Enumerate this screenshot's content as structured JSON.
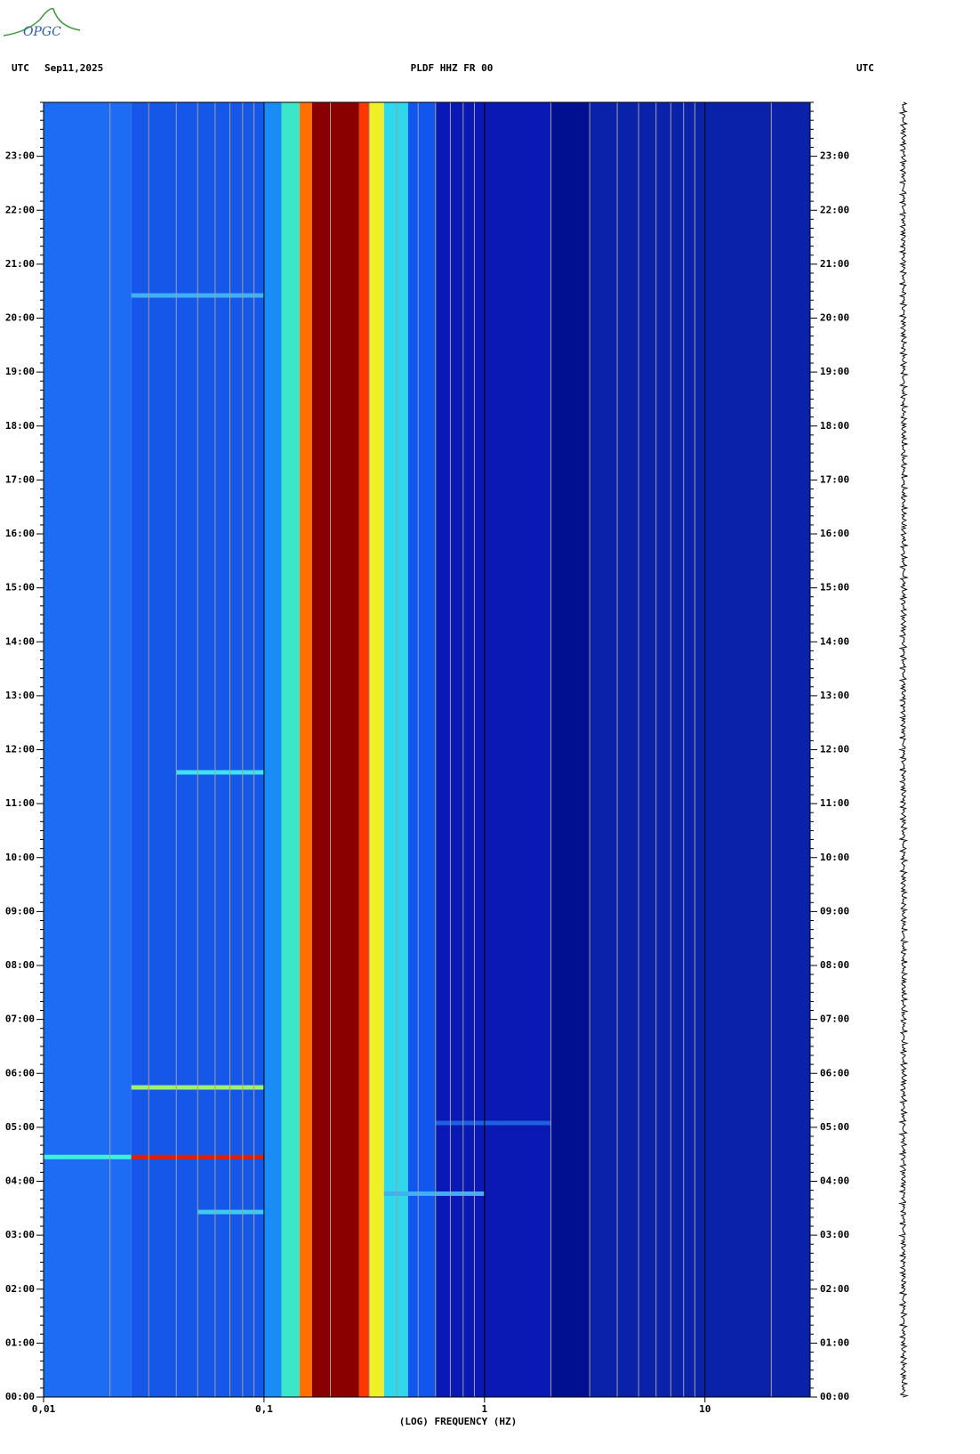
{
  "logo": "OPGC",
  "chart_data": {
    "type": "spectrogram",
    "title": "PLDF HHZ FR 00",
    "timezone_left": "UTC",
    "date": "Sep11,2025",
    "timezone_right": "UTC",
    "x_label": "(LOG) FREQUENCY (HZ)",
    "log_x": true,
    "xlim": [
      0.01,
      30
    ],
    "xticks": [
      {
        "value": 0.01,
        "label": "0,01"
      },
      {
        "value": 0.1,
        "label": "0,1"
      },
      1,
      10
    ],
    "xgrid": [
      0.02,
      0.03,
      0.04,
      0.05,
      0.06,
      0.07,
      0.08,
      0.09,
      0.2,
      0.3,
      0.4,
      0.5,
      0.6,
      0.7,
      0.8,
      0.9,
      2,
      3,
      4,
      5,
      6,
      7,
      8,
      9,
      20
    ],
    "ylim": [
      0,
      24
    ],
    "yticks": [
      {
        "value": 0,
        "label": "00:00"
      },
      {
        "value": 1,
        "label": "01:00"
      },
      {
        "value": 2,
        "label": "02:00"
      },
      {
        "value": 3,
        "label": "03:00"
      },
      {
        "value": 4,
        "label": "04:00"
      },
      {
        "value": 5,
        "label": "05:00"
      },
      {
        "value": 6,
        "label": "06:00"
      },
      {
        "value": 7,
        "label": "07:00"
      },
      {
        "value": 8,
        "label": "08:00"
      },
      {
        "value": 9,
        "label": "09:00"
      },
      {
        "value": 10,
        "label": "10:00"
      },
      {
        "value": 11,
        "label": "11:00"
      },
      {
        "value": 12,
        "label": "12:00"
      },
      {
        "value": 13,
        "label": "13:00"
      },
      {
        "value": 14,
        "label": "14:00"
      },
      {
        "value": 15,
        "label": "15:00"
      },
      {
        "value": 16,
        "label": "16:00"
      },
      {
        "value": 17,
        "label": "17:00"
      },
      {
        "value": 18,
        "label": "18:00"
      },
      {
        "value": 19,
        "label": "19:00"
      },
      {
        "value": 20,
        "label": "20:00"
      },
      {
        "value": 21,
        "label": "21:00"
      },
      {
        "value": 22,
        "label": "22:00"
      },
      {
        "value": 23,
        "label": "23:00"
      }
    ],
    "yminor_per_tick": 6,
    "bins": [
      0.01,
      0.025,
      0.1,
      0.12,
      0.145,
      0.165,
      0.27,
      0.3,
      0.35,
      0.45,
      0.6,
      2,
      3,
      30
    ],
    "bin_colors": [
      "#1f6cf4",
      "#1557e8",
      "#1a8cf5",
      "#3ce6c8",
      "#ff7000",
      "#8a0000",
      "#ff3800",
      "#f0f028",
      "#30d8ec",
      "#1256f0",
      "#0a18b4",
      "#001090",
      "#0a22aa"
    ],
    "events": [
      {
        "time": 4.45,
        "freq": [
          0.01,
          0.025
        ],
        "color": "#40f0e0"
      },
      {
        "time": 4.45,
        "freq": [
          0.025,
          0.1
        ],
        "color": "#e02000"
      },
      {
        "time": 5.74,
        "freq": [
          0.025,
          0.1
        ],
        "color": "#a0f070"
      },
      {
        "time": 11.58,
        "freq": [
          0.04,
          0.1
        ],
        "color": "#40e0f0"
      },
      {
        "time": 3.43,
        "freq": [
          0.05,
          0.1
        ],
        "color": "#40c8f0"
      },
      {
        "time": 20.42,
        "freq": [
          0.025,
          0.1
        ],
        "color": "#40b0f0"
      },
      {
        "time": 3.77,
        "freq": [
          0.35,
          1
        ],
        "color": "#40b0f0"
      },
      {
        "time": 5.08,
        "freq": [
          0.6,
          2
        ],
        "color": "#2060e0"
      }
    ],
    "trace_color": "#000000"
  }
}
